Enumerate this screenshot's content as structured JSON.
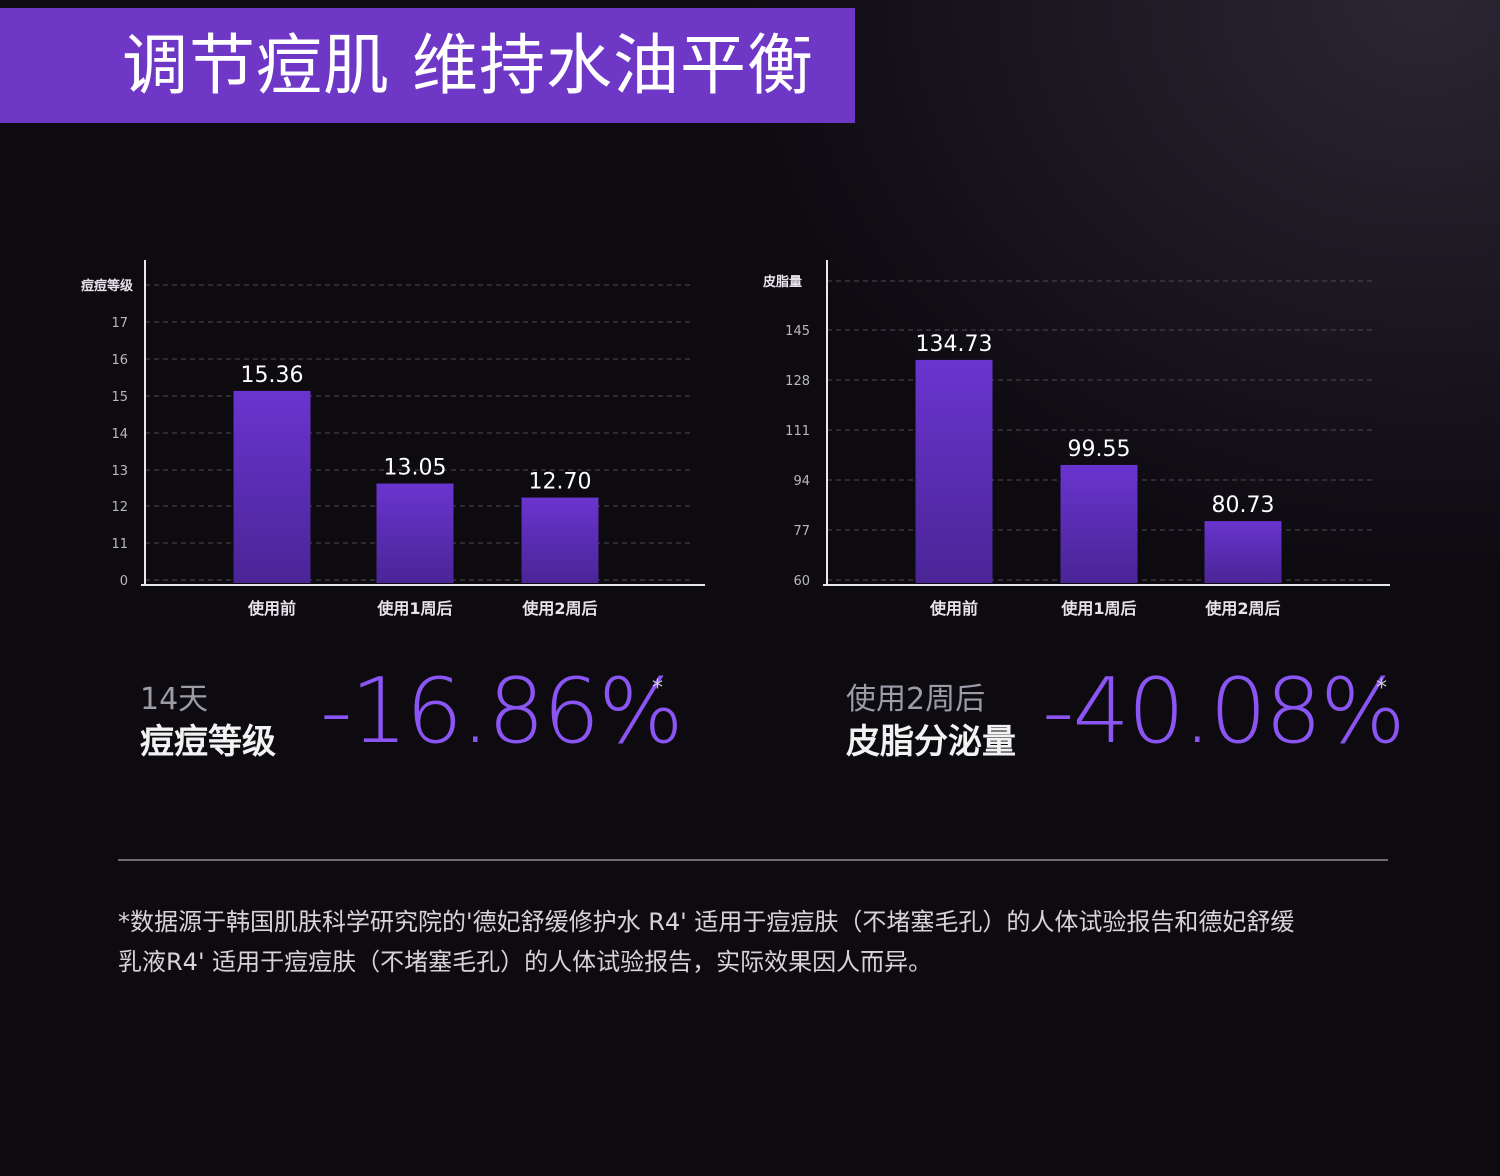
{
  "header": {
    "title": "调节痘肌 维持水油平衡"
  },
  "colors": {
    "accent": "#6f37c6",
    "bar_top": "#6a34cf",
    "bar_bottom": "#4a2596",
    "stat_value": "#8a55f2",
    "background": "#0d0a10"
  },
  "chart_data": [
    {
      "type": "bar",
      "title": "",
      "ylabel": "痘痘等级",
      "xlabel": "",
      "categories": [
        "使用前",
        "使用1周后",
        "使用2周后"
      ],
      "values": [
        15.36,
        13.05,
        12.7
      ],
      "value_labels": [
        "15.36",
        "13.05",
        "12.70"
      ],
      "y_ticks": [
        "0",
        "11",
        "12",
        "13",
        "14",
        "15",
        "16",
        "17"
      ],
      "ylim_display": [
        10,
        18
      ],
      "grid": true,
      "legend": "none"
    },
    {
      "type": "bar",
      "title": "",
      "ylabel": "皮脂量",
      "xlabel": "",
      "categories": [
        "使用前",
        "使用1周后",
        "使用2周后"
      ],
      "values": [
        134.73,
        99.55,
        80.73
      ],
      "value_labels": [
        "134.73",
        "99.55",
        "80.73"
      ],
      "y_ticks": [
        "60",
        "77",
        "94",
        "111",
        "128",
        "145"
      ],
      "ylim": [
        60,
        162
      ],
      "grid": true,
      "legend": "none"
    }
  ],
  "stats": [
    {
      "sub": "14天",
      "label": "痘痘等级",
      "value": "-16.86%",
      "asterisk": "*"
    },
    {
      "sub": "使用2周后",
      "label": "皮脂分泌量",
      "value": "-40.08%",
      "asterisk": "*"
    }
  ],
  "footnote": {
    "line1": "*数据源于韩国肌肤科学研究院的'德妃舒缓修护水 R4' 适用于痘痘肤（不堵塞毛孔）的人体试验报告和德妃舒缓",
    "line2": "乳液R4' 适用于痘痘肤（不堵塞毛孔）的人体试验报告，实际效果因人而异。"
  }
}
